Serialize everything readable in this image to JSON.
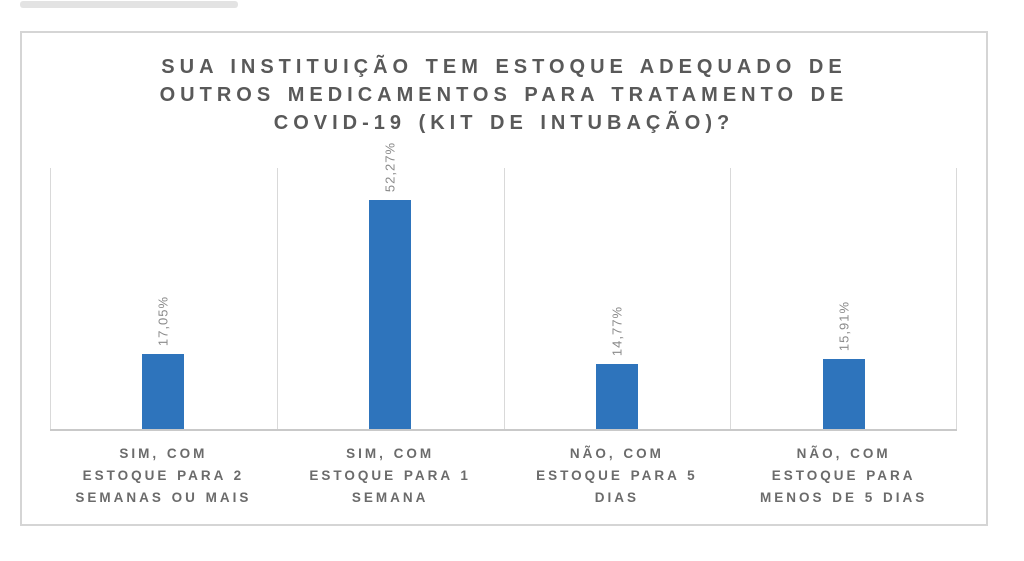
{
  "decorations": {
    "top_strip_color": "#D9D9D9"
  },
  "colors": {
    "bar": "#2E74BC",
    "title_text": "#595959",
    "value_label_text": "#8A8A8A",
    "category_text": "#6B6B6B",
    "gridline": "#D9D9D9",
    "axis_line": "#C9C9C9",
    "chart_border": "#D5D5D5",
    "background": "#FFFFFF"
  },
  "chart_data": {
    "type": "bar",
    "title": "SUA INSTITUIÇÃO TEM ESTOQUE ADEQUADO DE OUTROS MEDICAMENTOS PARA TRATAMENTO DE COVID-19 (KIT DE INTUBAÇÃO)?",
    "title_lines": [
      "SUA INSTITUIÇÃO TEM ESTOQUE ADEQUADO DE",
      "OUTROS MEDICAMENTOS PARA TRATAMENTO DE",
      "COVID-19 (KIT DE INTUBAÇÃO)?"
    ],
    "categories": [
      "SIM, COM ESTOQUE PARA 2 SEMANAS OU MAIS",
      "SIM, COM ESTOQUE PARA 1 SEMANA",
      "NÃO, COM ESTOQUE PARA 5 DIAS",
      "NÃO, COM ESTOQUE PARA MENOS DE 5 DIAS"
    ],
    "category_lines": [
      [
        "SIM, COM",
        "ESTOQUE PARA 2",
        "SEMANAS OU MAIS"
      ],
      [
        "SIM, COM",
        "ESTOQUE PARA 1",
        "SEMANA"
      ],
      [
        "NÃO, COM",
        "ESTOQUE PARA 5",
        "DIAS"
      ],
      [
        "NÃO, COM",
        "ESTOQUE PARA",
        "MENOS DE 5 DIAS"
      ]
    ],
    "values": [
      17.05,
      52.27,
      14.77,
      15.91
    ],
    "value_labels": [
      "17,05%",
      "52,27%",
      "14,77%",
      "15,91%"
    ],
    "value_label_rotation_deg": 270,
    "xlabel": "",
    "ylabel": "",
    "ylim": [
      0,
      60
    ],
    "y_axis_ticks_visible": false,
    "grid": "vertical-category-separators",
    "legend": "none"
  }
}
